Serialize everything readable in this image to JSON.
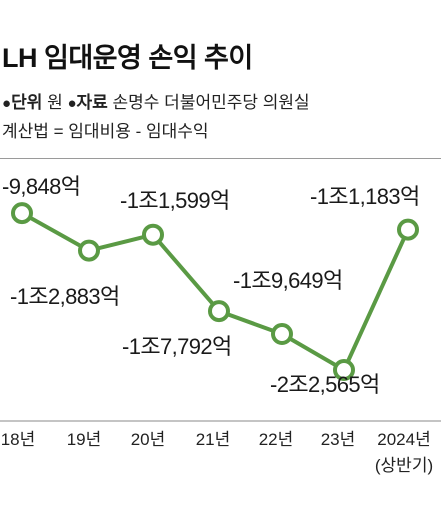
{
  "header": {
    "title": "LH 임대운영 손익 추이",
    "unit_label": "단위",
    "unit_value": "원",
    "source_label": "자료",
    "source_value": "손명수 더불어민주당 의원실",
    "formula": "계산법 = 임대비용 - 임대수익"
  },
  "colors": {
    "line": "#5a9a44",
    "marker_fill": "#ffffff",
    "divider": "#9a9a9a"
  },
  "chart_data": {
    "type": "line",
    "title": "LH 임대운영 손익 추이",
    "unit": "원",
    "categories": [
      "18년",
      "19년",
      "20년",
      "21년",
      "22년",
      "23년",
      "2024년 (상반기)"
    ],
    "category_sublabels": [
      "",
      "",
      "",
      "",
      "",
      "",
      "(상반기)"
    ],
    "category_labels": [
      "18년",
      "19년",
      "20년",
      "21년",
      "22년",
      "23년",
      "2024년"
    ],
    "series": [
      {
        "values_eok": [
          9848,
          12883,
          11599,
          17792,
          19649,
          22565,
          11183
        ],
        "data_labels": [
          "-9,848억",
          "-1조2,883억",
          "-1조1,599억",
          "-1조7,792억",
          "-1조9,649억",
          "-2조2,565억",
          "-1조1,183억"
        ]
      }
    ],
    "ylim": [
      7000,
      25000
    ],
    "grid": false,
    "legend": "none"
  }
}
